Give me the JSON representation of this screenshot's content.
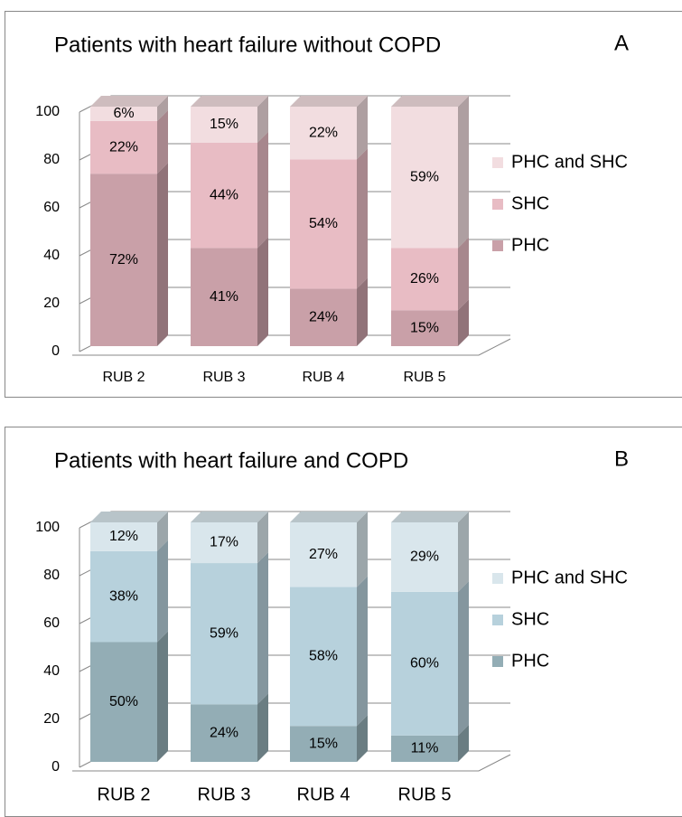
{
  "chart_data": [
    {
      "type": "bar3d-stacked",
      "title": "Patients with heart failure without COPD",
      "panel_label": "A",
      "categories": [
        "RUB 2",
        "RUB 3",
        "RUB 4",
        "RUB 5"
      ],
      "series": [
        {
          "name": "PHC",
          "color": "#c9a0a8",
          "values": [
            72,
            41,
            24,
            15
          ],
          "value_labels": [
            "72%",
            "41%",
            "24%",
            "15%"
          ]
        },
        {
          "name": "SHC",
          "color": "#e8bcc4",
          "values": [
            22,
            44,
            54,
            26
          ],
          "value_labels": [
            "22%",
            "44%",
            "54%",
            "26%"
          ]
        },
        {
          "name": "PHC and SHC",
          "color": "#f2dde0",
          "values": [
            6,
            15,
            22,
            59
          ],
          "value_labels": [
            "6%",
            "15%",
            "22%",
            "59%"
          ]
        }
      ],
      "ylim": [
        0,
        100
      ],
      "yticks": [
        0,
        20,
        40,
        60,
        80,
        100
      ],
      "grid": true,
      "legend": "right"
    },
    {
      "type": "bar3d-stacked",
      "title": "Patients with heart failure and COPD",
      "panel_label": "B",
      "categories": [
        "RUB 2",
        "RUB 3",
        "RUB 4",
        "RUB 5"
      ],
      "series": [
        {
          "name": "PHC",
          "color": "#93adb5",
          "values": [
            50,
            24,
            15,
            11
          ],
          "value_labels": [
            "50%",
            "24%",
            "15%",
            "11%"
          ]
        },
        {
          "name": "SHC",
          "color": "#b7d1dc",
          "values": [
            38,
            59,
            58,
            60
          ],
          "value_labels": [
            "38%",
            "59%",
            "58%",
            "60%"
          ]
        },
        {
          "name": "PHC and SHC",
          "color": "#d9e6ec",
          "values": [
            12,
            17,
            27,
            29
          ],
          "value_labels": [
            "12%",
            "17%",
            "27%",
            "29%"
          ]
        }
      ],
      "ylim": [
        0,
        100
      ],
      "yticks": [
        0,
        20,
        40,
        60,
        80,
        100
      ],
      "grid": true,
      "legend": "right"
    }
  ]
}
